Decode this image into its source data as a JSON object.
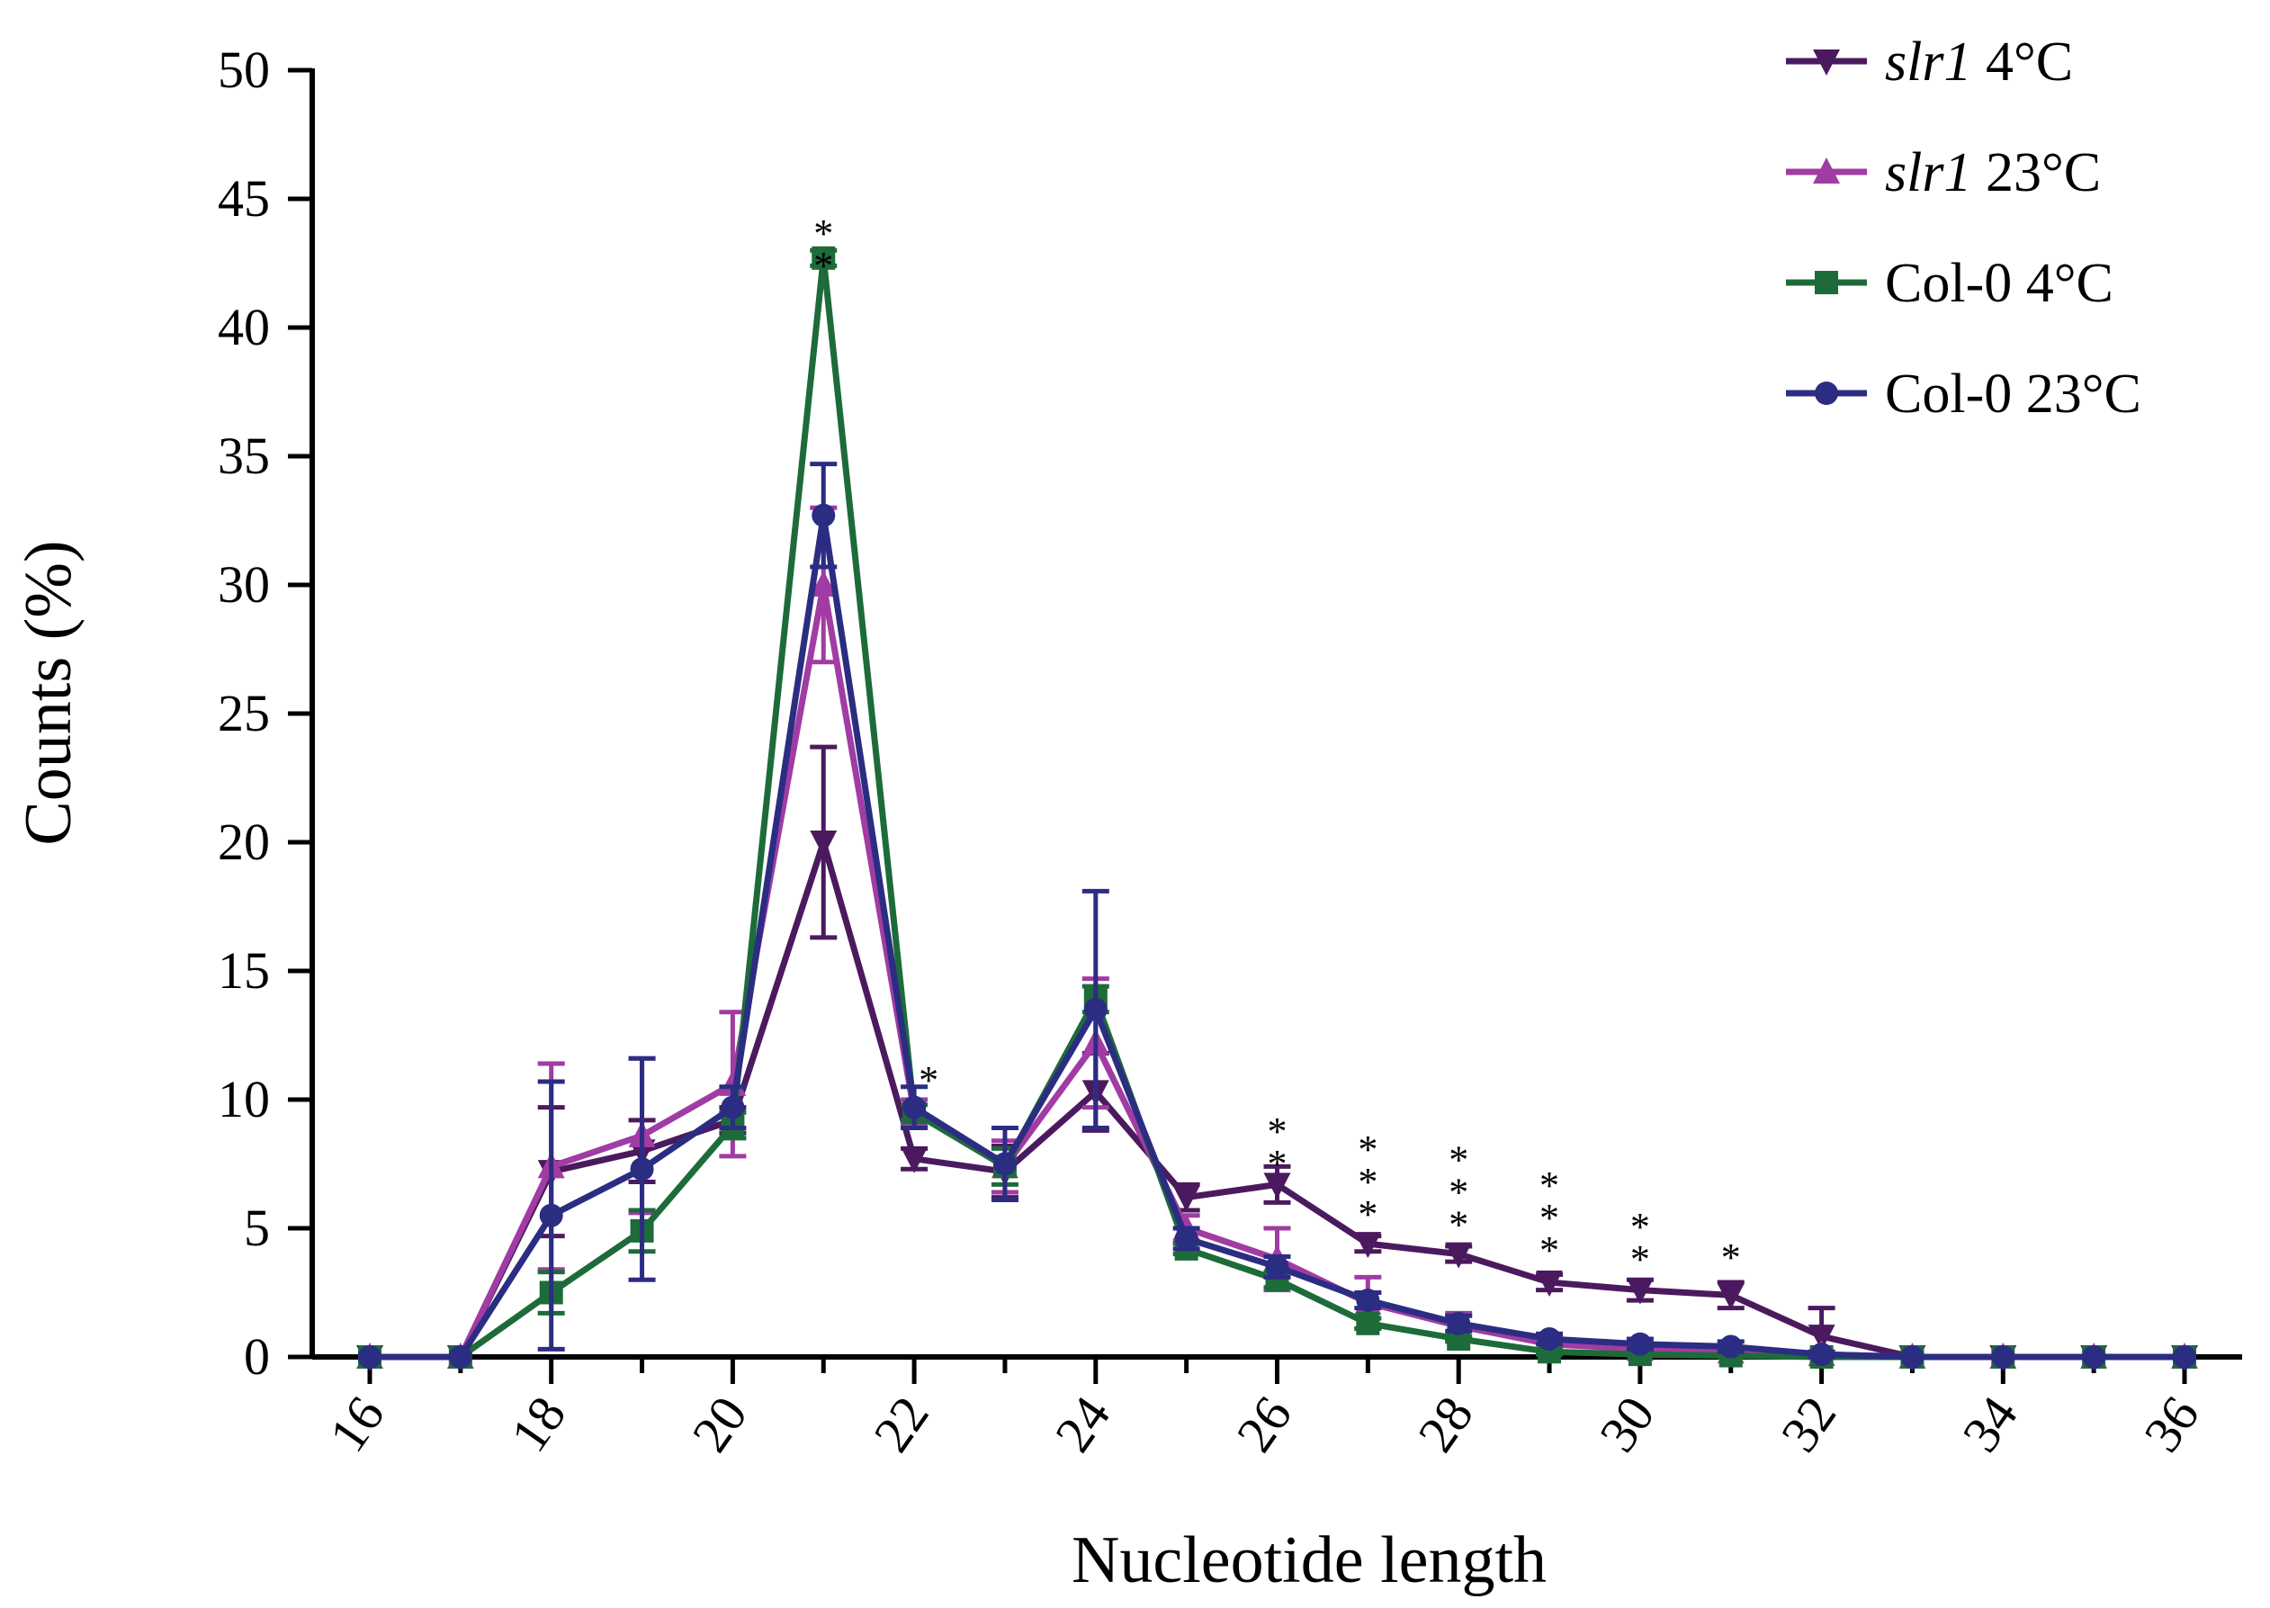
{
  "chart_data": {
    "type": "line",
    "title": "",
    "xlabel": "Nucleotide length",
    "ylabel": "Counts (%)",
    "xlim": [
      16,
      36
    ],
    "ylim": [
      0,
      50
    ],
    "x": [
      16,
      17,
      18,
      19,
      20,
      21,
      22,
      23,
      24,
      25,
      26,
      27,
      28,
      29,
      30,
      31,
      32,
      33,
      34,
      35,
      36
    ],
    "x_tick_labels": [
      "16",
      "18",
      "20",
      "22",
      "24",
      "26",
      "28",
      "30",
      "32",
      "34",
      "36"
    ],
    "y_tick_labels": [
      "0",
      "5",
      "10",
      "15",
      "20",
      "25",
      "30",
      "35",
      "40",
      "45",
      "50"
    ],
    "legend_position": "top-right",
    "series": [
      {
        "name_italic": "slr1",
        "name_rest": " 4°C",
        "color": "#4b1a5e",
        "marker": "triangle-down",
        "values": [
          0,
          0,
          7.2,
          8.0,
          9.2,
          20.0,
          7.7,
          7.2,
          10.3,
          6.2,
          6.7,
          4.4,
          4.0,
          2.9,
          2.6,
          2.4,
          0.8,
          0,
          0,
          0,
          0
        ],
        "errors": [
          0,
          0,
          2.5,
          1.2,
          0.5,
          3.7,
          0.4,
          1.0,
          1.5,
          0.5,
          0.7,
          0.3,
          0.3,
          0.3,
          0.4,
          0.5,
          1.1,
          0,
          0,
          0,
          0
        ]
      },
      {
        "name_italic": "slr1",
        "name_rest": " 23°C",
        "color": "#a03ca3",
        "marker": "triangle-up",
        "values": [
          0,
          0,
          7.4,
          8.6,
          10.6,
          30.0,
          9.5,
          7.4,
          12.2,
          5.0,
          3.8,
          2.1,
          1.2,
          0.5,
          0.3,
          0.2,
          0.1,
          0,
          0,
          0,
          0
        ],
        "errors": [
          0,
          0,
          4.0,
          3.0,
          2.8,
          3.0,
          0.5,
          1.0,
          2.5,
          0.5,
          1.2,
          1.0,
          0.5,
          0.3,
          0.2,
          0.1,
          0.1,
          0,
          0,
          0,
          0
        ]
      },
      {
        "name_italic": "",
        "name_rest": "Col-0 4°C",
        "color": "#1e6b3a",
        "marker": "square",
        "values": [
          0,
          0,
          2.5,
          4.9,
          9.0,
          42.7,
          9.5,
          7.4,
          13.9,
          4.2,
          3.0,
          1.3,
          0.7,
          0.2,
          0.1,
          0.05,
          0,
          0,
          0,
          0,
          0
        ],
        "errors": [
          0,
          0,
          0.8,
          0.8,
          0.5,
          0.3,
          0.3,
          0.7,
          0.5,
          0.2,
          0.3,
          0.2,
          0.1,
          0.1,
          0.05,
          0.05,
          0,
          0,
          0,
          0,
          0
        ]
      },
      {
        "name_italic": "",
        "name_rest": "Col-0 23°C",
        "color": "#2b2d82",
        "marker": "circle",
        "values": [
          0,
          0,
          5.5,
          7.3,
          9.7,
          32.7,
          9.7,
          7.5,
          13.5,
          4.6,
          3.5,
          2.2,
          1.3,
          0.7,
          0.5,
          0.4,
          0.1,
          0,
          0,
          0,
          0
        ],
        "errors": [
          0,
          0,
          5.2,
          4.3,
          0.8,
          2.0,
          0.8,
          1.4,
          4.6,
          0.4,
          0.4,
          0.3,
          0.3,
          0.2,
          0.2,
          0.2,
          0.1,
          0,
          0,
          0,
          0
        ]
      }
    ],
    "annotations": [
      {
        "x": 21,
        "y_top": 44.2,
        "stars": [
          "*",
          "*"
        ]
      },
      {
        "x": 22,
        "y_top": 11.3,
        "stars": [
          "*"
        ]
      },
      {
        "x": 26,
        "y_top": 9.3,
        "stars": [
          "*",
          "*"
        ]
      },
      {
        "x": 27,
        "y_top": 8.6,
        "stars": [
          "*",
          "*",
          "*"
        ]
      },
      {
        "x": 28,
        "y_top": 8.2,
        "stars": [
          "*",
          "*",
          "*"
        ]
      },
      {
        "x": 29,
        "y_top": 7.2,
        "stars": [
          "*",
          "*",
          "*"
        ]
      },
      {
        "x": 30,
        "y_top": 5.6,
        "stars": [
          "*",
          "*"
        ]
      },
      {
        "x": 31,
        "y_top": 4.4,
        "stars": [
          "*"
        ]
      }
    ]
  }
}
